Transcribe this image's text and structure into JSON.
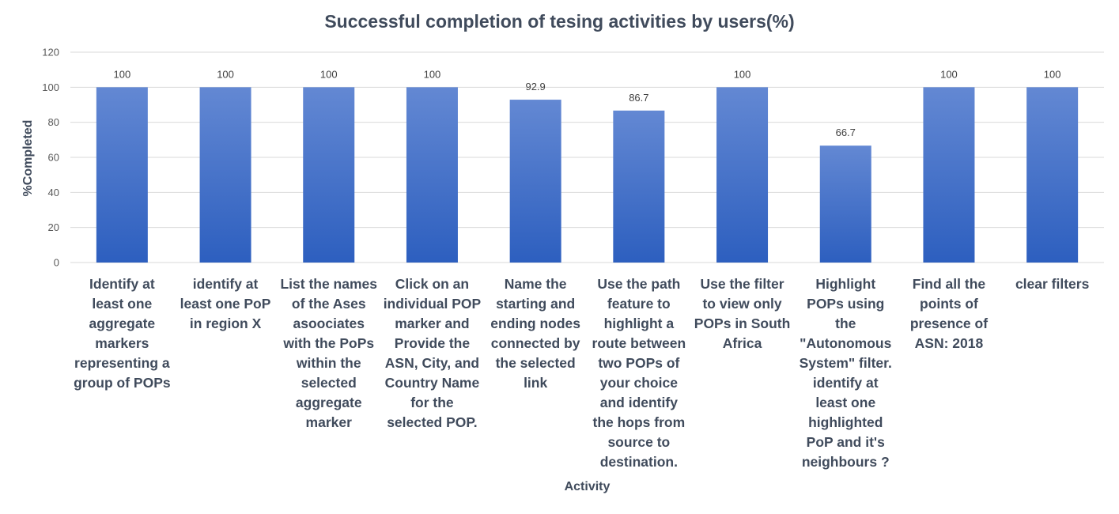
{
  "chart_data": {
    "type": "bar",
    "title": "Successful completion of tesing activities by users(%)",
    "xlabel": "Activity",
    "ylabel": "%Completed",
    "ylim": [
      0,
      120
    ],
    "yticks": [
      0,
      20,
      40,
      60,
      80,
      100,
      120
    ],
    "grid": true,
    "legend": "none",
    "colors": {
      "bar_top": "#6388d3",
      "bar_bottom": "#2d5fbf",
      "gridline": "#d9d9d9",
      "text": "#404b5c"
    },
    "categories": [
      "Identify at least one aggregate markers representing a group of POPs",
      "identify at least one PoP in region X",
      "List the names of the Ases asoociates with the PoPs within the selected aggregate marker",
      "Click on an individual POP marker and Provide the ASN, City, and Country Name for the selected POP.",
      "Name the starting and ending nodes connected by the selected link",
      "Use the path feature to highlight a route between two POPs of your choice and identify the hops from source to destination.",
      "Use the filter to view only POPs in South Africa",
      "Highlight POPs using the \"Autonomous System\" filter. identify at least one highlighted PoP and it's neighbours ?",
      "Find all the points of presence of ASN: 2018",
      "clear filters"
    ],
    "category_lines": [
      [
        "Identify at",
        "least one",
        "aggregate",
        "markers",
        "representing a",
        "group of POPs"
      ],
      [
        "identify at",
        "least one PoP",
        "in region X"
      ],
      [
        "List the names",
        "of the Ases",
        "asoociates",
        "with the PoPs",
        "within the",
        "selected",
        "aggregate",
        "marker"
      ],
      [
        "Click on an",
        "individual POP",
        "marker and",
        "Provide the",
        "ASN, City, and",
        "Country Name",
        "for the",
        "selected POP."
      ],
      [
        "Name the",
        "starting and",
        "ending nodes",
        "connected by",
        "the selected",
        "link"
      ],
      [
        "Use the path",
        "feature to",
        "highlight a",
        "route between",
        "two POPs of",
        "your choice",
        "and identify",
        "the hops from",
        "source to",
        "destination."
      ],
      [
        "Use the filter",
        "to view only",
        "POPs in South",
        "Africa"
      ],
      [
        "Highlight",
        "POPs using the",
        "\"Autonomous",
        "System\" filter.",
        "identify at",
        "least one",
        "highlighted",
        "PoP and it's",
        "neighbours ?"
      ],
      [
        "Find all the",
        "points of",
        "presence of",
        "ASN: 2018"
      ],
      [
        "clear filters"
      ]
    ],
    "values": [
      100,
      100,
      100,
      100,
      92.9,
      86.7,
      100,
      66.7,
      100,
      100
    ]
  }
}
